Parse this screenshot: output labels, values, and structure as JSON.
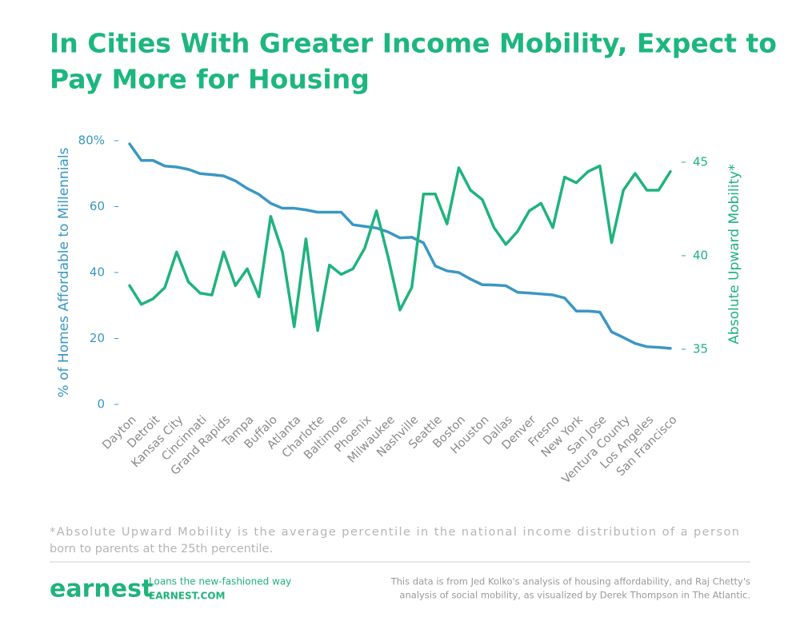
{
  "chart_data": {
    "type": "line",
    "title": [
      "In Cities With Greater Income Mobility, Expect to",
      "Pay More for Housing"
    ],
    "categories": [
      "Dayton",
      null,
      "Detroit",
      null,
      "Kansas City",
      null,
      "Cincinnati",
      null,
      "Grand Rapids",
      null,
      "Tampa",
      null,
      "Buffalo",
      null,
      "Atlanta",
      null,
      "Charlotte",
      null,
      "Baltimore",
      null,
      "Phoenix",
      null,
      "Milwaukee",
      null,
      "Nashville",
      null,
      "Seattle",
      null,
      "Boston",
      null,
      "Houston",
      null,
      "Dallas",
      null,
      "Denver",
      null,
      "Fresno",
      null,
      "New York",
      null,
      "San Jose",
      null,
      "Ventura County",
      null,
      "Los Angeles",
      null,
      "San Francisco"
    ],
    "series": [
      {
        "name": "% of Homes Affordable to Millennials",
        "color": "#3a97c4",
        "axis": "y",
        "values": [
          79,
          74,
          74,
          72.3,
          72,
          71.3,
          70,
          69.7,
          69.3,
          67.8,
          65.5,
          63.7,
          61,
          59.5,
          59.5,
          59,
          58.3,
          58.3,
          58.3,
          54.5,
          54,
          53.5,
          52.3,
          50.5,
          50.7,
          49,
          42,
          40.5,
          40,
          38,
          36.3,
          36.2,
          36,
          34,
          33.8,
          33.5,
          33.2,
          32.3,
          28.3,
          28.3,
          28,
          22,
          20.3,
          18.5,
          17.5,
          17.3,
          17
        ]
      },
      {
        "name": "Absolute Upward Mobility*",
        "color": "#1fb37d",
        "axis": "y2",
        "values": [
          38.4,
          37.4,
          37.7,
          38.3,
          40.2,
          38.6,
          38.0,
          37.9,
          40.2,
          38.4,
          39.3,
          37.8,
          42.1,
          40.2,
          36.2,
          40.9,
          36.0,
          39.5,
          39.0,
          39.3,
          40.4,
          42.4,
          39.9,
          37.1,
          38.3,
          43.3,
          43.3,
          41.7,
          44.7,
          43.5,
          43.0,
          41.5,
          40.6,
          41.3,
          42.4,
          42.8,
          41.5,
          44.2,
          43.9,
          44.5,
          44.8,
          40.7,
          43.5,
          44.4,
          43.5,
          43.5,
          44.5
        ]
      }
    ],
    "ylim": [
      0,
      80
    ],
    "yticks": [
      0,
      20,
      40,
      60,
      {
        "value": 80,
        "label": "80%"
      }
    ],
    "y2lim": [
      32.05,
      46.15
    ],
    "y2ticks": [
      35,
      40,
      45
    ],
    "footnote": [
      "*Absolute Upward Mobility is the average percentile in the national income distribution of a person",
      "born to parents at the 25th percentile."
    ]
  },
  "footer": {
    "brand": "earnest",
    "tagline": "Loans the new-fashioned way",
    "url": "EARNEST.COM",
    "source": [
      "This data is from Jed Kolko's analysis of housing affordability, and Raj Chetty's",
      "analysis of social mobility, as visualized by Derek Thompson in The Atlantic."
    ]
  }
}
